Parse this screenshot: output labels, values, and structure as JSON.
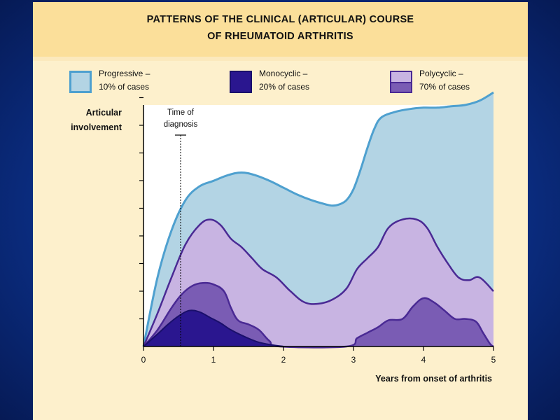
{
  "title_line1": "PATTERNS OF THE CLINICAL (ARTICULAR) COURSE",
  "title_line2": "OF RHEUMATOID ARTHRITIS",
  "legend": {
    "progressive": {
      "line1": "Progressive –",
      "line2": "10% of cases"
    },
    "monocyclic": {
      "line1": "Monocyclic –",
      "line2": "20% of cases"
    },
    "polycyclic": {
      "line1": "Polycyclic –",
      "line2": "70% of cases"
    }
  },
  "colors": {
    "background": "#0b2f86",
    "panel": "#fdf0cc",
    "header": "#fbdf9a",
    "progressive_fill": "#b3d4e4",
    "progressive_line": "#4ea0cf",
    "polycyclic_light": "#c8b4e2",
    "polycyclic_dark": "#7a5cb4",
    "polycyclic_line": "#4a2a94",
    "monocyclic_fill": "#2a168f"
  },
  "chart_data": {
    "type": "area",
    "ylabel_line1": "Articular",
    "ylabel_line2": "involvement",
    "xlabel": "Years from onset of arthritis",
    "xlim": [
      0,
      5
    ],
    "ylim": [
      0,
      9
    ],
    "x_ticks": [
      "0",
      "1",
      "2",
      "3",
      "4",
      "5"
    ],
    "y_tick_count": 9,
    "y_tick_labels": false,
    "annotation": {
      "line1": "Time of",
      "line2": "diagnosis",
      "x": 0.53
    },
    "series": [
      {
        "name": "Progressive",
        "points": [
          [
            0,
            0
          ],
          [
            0.2,
            2.5
          ],
          [
            0.4,
            4.2
          ],
          [
            0.6,
            5.3
          ],
          [
            0.8,
            5.8
          ],
          [
            1.0,
            6.0
          ],
          [
            1.2,
            6.2
          ],
          [
            1.4,
            6.3
          ],
          [
            1.6,
            6.2
          ],
          [
            1.8,
            6.0
          ],
          [
            2.0,
            5.75
          ],
          [
            2.2,
            5.5
          ],
          [
            2.4,
            5.3
          ],
          [
            2.6,
            5.15
          ],
          [
            2.7,
            5.1
          ],
          [
            2.8,
            5.15
          ],
          [
            2.9,
            5.3
          ],
          [
            3.0,
            5.7
          ],
          [
            3.1,
            6.4
          ],
          [
            3.2,
            7.2
          ],
          [
            3.3,
            7.9
          ],
          [
            3.4,
            8.3
          ],
          [
            3.6,
            8.5
          ],
          [
            3.8,
            8.6
          ],
          [
            4.0,
            8.65
          ],
          [
            4.2,
            8.65
          ],
          [
            4.4,
            8.7
          ],
          [
            4.6,
            8.75
          ],
          [
            4.8,
            8.9
          ],
          [
            5.0,
            9.2
          ]
        ]
      },
      {
        "name": "Polycyclic (light)",
        "points": [
          [
            0,
            0
          ],
          [
            0.2,
            1.2
          ],
          [
            0.4,
            2.5
          ],
          [
            0.6,
            3.7
          ],
          [
            0.8,
            4.4
          ],
          [
            0.95,
            4.6
          ],
          [
            1.1,
            4.4
          ],
          [
            1.25,
            3.9
          ],
          [
            1.4,
            3.6
          ],
          [
            1.55,
            3.2
          ],
          [
            1.7,
            2.8
          ],
          [
            1.9,
            2.5
          ],
          [
            2.1,
            2.0
          ],
          [
            2.3,
            1.6
          ],
          [
            2.5,
            1.55
          ],
          [
            2.7,
            1.7
          ],
          [
            2.9,
            2.1
          ],
          [
            3.05,
            2.8
          ],
          [
            3.2,
            3.2
          ],
          [
            3.35,
            3.6
          ],
          [
            3.5,
            4.3
          ],
          [
            3.7,
            4.6
          ],
          [
            3.9,
            4.6
          ],
          [
            4.05,
            4.3
          ],
          [
            4.2,
            3.6
          ],
          [
            4.35,
            3.0
          ],
          [
            4.5,
            2.5
          ],
          [
            4.65,
            2.4
          ],
          [
            4.8,
            2.5
          ],
          [
            5.0,
            2.0
          ]
        ]
      },
      {
        "name": "Polycyclic (dark)",
        "points": [
          [
            0,
            0
          ],
          [
            0.2,
            0.6
          ],
          [
            0.4,
            1.4
          ],
          [
            0.55,
            1.9
          ],
          [
            0.7,
            2.2
          ],
          [
            0.85,
            2.3
          ],
          [
            1.0,
            2.25
          ],
          [
            1.15,
            2.0
          ],
          [
            1.25,
            1.4
          ],
          [
            1.35,
            0.95
          ],
          [
            1.5,
            0.8
          ],
          [
            1.65,
            0.6
          ],
          [
            1.8,
            0.2
          ],
          [
            1.95,
            0
          ],
          [
            2.9,
            0
          ],
          [
            3.05,
            0.3
          ],
          [
            3.2,
            0.5
          ],
          [
            3.35,
            0.7
          ],
          [
            3.5,
            0.95
          ],
          [
            3.7,
            1.0
          ],
          [
            3.85,
            1.45
          ],
          [
            4.0,
            1.75
          ],
          [
            4.15,
            1.6
          ],
          [
            4.3,
            1.3
          ],
          [
            4.45,
            1.0
          ],
          [
            4.6,
            1.0
          ],
          [
            4.75,
            0.9
          ],
          [
            4.85,
            0.5
          ],
          [
            4.95,
            0.1
          ],
          [
            5.0,
            0
          ]
        ]
      },
      {
        "name": "Monocyclic",
        "points": [
          [
            0,
            0
          ],
          [
            0.2,
            0.45
          ],
          [
            0.35,
            0.8
          ],
          [
            0.5,
            1.1
          ],
          [
            0.65,
            1.3
          ],
          [
            0.8,
            1.25
          ],
          [
            0.95,
            1.05
          ],
          [
            1.1,
            0.85
          ],
          [
            1.25,
            0.6
          ],
          [
            1.45,
            0.35
          ],
          [
            1.65,
            0.15
          ],
          [
            1.85,
            0.05
          ],
          [
            2.0,
            0
          ]
        ]
      }
    ]
  }
}
